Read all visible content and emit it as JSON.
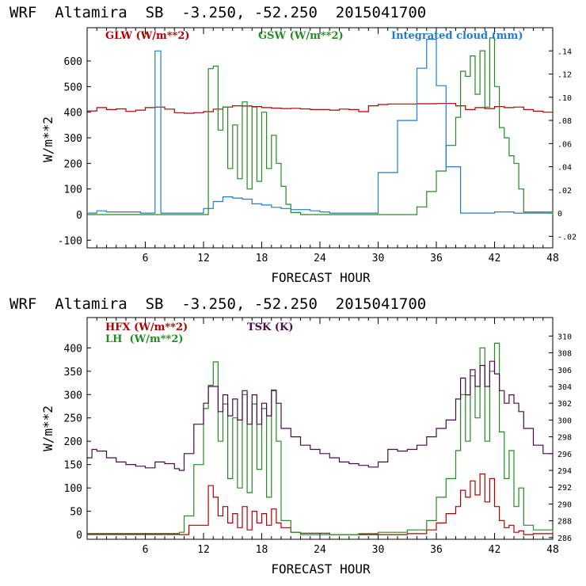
{
  "chart_data": [
    {
      "type": "line",
      "title": "WRF  Altamira  SB  -3.250, -52.250  2015041700",
      "xlabel": "FORECAST HOUR",
      "ylabel": "W/m**2",
      "xlim": [
        0,
        48
      ],
      "ylim": [
        -130,
        730
      ],
      "y2lim": [
        -0.03,
        0.16
      ],
      "x_ticks": [
        6,
        12,
        18,
        24,
        30,
        36,
        42,
        48
      ],
      "y_ticks": [
        -100,
        0,
        100,
        200,
        300,
        400,
        500,
        600
      ],
      "y2_ticks": [
        -0.02,
        0,
        0.02,
        0.04,
        0.06,
        0.08,
        0.1,
        0.12,
        0.14
      ],
      "y2_tick_labels": [
        "-.02",
        "0",
        ".02",
        ".04",
        ".06",
        ".08",
        ".10",
        ".12",
        ".14"
      ],
      "legend": [
        "GLW (W/m**2)",
        "GSW (W/m**2)",
        "Integrated cloud (mm)"
      ],
      "series": [
        {
          "name": "GLW (W/m**2)",
          "axis": "left",
          "color": "#b00000",
          "x": [
            0,
            1,
            2,
            3,
            4,
            5,
            6,
            7,
            8,
            9,
            10,
            11,
            12,
            13,
            14,
            15,
            16,
            17,
            18,
            19,
            20,
            21,
            22,
            23,
            24,
            25,
            26,
            27,
            28,
            29,
            30,
            31,
            32,
            33,
            34,
            35,
            36,
            37,
            38,
            39,
            40,
            41,
            42,
            43,
            44,
            45,
            46,
            47,
            48
          ],
          "y": [
            405,
            418,
            410,
            413,
            403,
            408,
            418,
            420,
            412,
            398,
            396,
            398,
            402,
            412,
            420,
            425,
            424,
            422,
            418,
            416,
            414,
            415,
            413,
            410,
            410,
            408,
            412,
            410,
            402,
            425,
            430,
            432,
            432,
            432,
            433,
            433,
            434,
            434,
            425,
            410,
            418,
            414,
            422,
            418,
            420,
            410,
            404,
            400,
            397
          ]
        },
        {
          "name": "GSW (W/m**2)",
          "axis": "left",
          "color": "#228b22",
          "x": [
            0,
            9.5,
            12.5,
            13,
            13.5,
            14,
            14.5,
            15,
            15.5,
            16,
            16.5,
            17,
            17.5,
            18,
            18.5,
            19,
            19.5,
            20,
            20.5,
            21,
            22,
            33,
            34,
            35,
            36,
            37,
            38,
            38.5,
            39,
            39.5,
            40,
            40.5,
            41,
            41.5,
            42,
            42.5,
            43,
            43.5,
            44,
            44.5,
            45,
            48
          ],
          "y": [
            0,
            0,
            570,
            580,
            330,
            420,
            180,
            350,
            140,
            440,
            100,
            420,
            130,
            400,
            180,
            310,
            200,
            110,
            40,
            8,
            0,
            0,
            30,
            90,
            170,
            270,
            380,
            560,
            540,
            620,
            470,
            640,
            420,
            690,
            500,
            340,
            300,
            230,
            200,
            100,
            10,
            0
          ]
        },
        {
          "name": "Integrated cloud (mm)",
          "axis": "right",
          "color": "#1e7bd0",
          "x": [
            0,
            1,
            2,
            4,
            5.5,
            6.2,
            7,
            7.6,
            8.5,
            10,
            12,
            13,
            14,
            15,
            16,
            17,
            18,
            19,
            20,
            21,
            22,
            23,
            24,
            25,
            28.5,
            30,
            32,
            34,
            35,
            36,
            37,
            38.5,
            40,
            42,
            44,
            46,
            48
          ],
          "y": [
            0,
            0.002,
            0.001,
            0.001,
            0,
            0,
            0.14,
            0,
            0,
            0,
            0.004,
            0.01,
            0.014,
            0.013,
            0.012,
            0.008,
            0.007,
            0.005,
            0.004,
            0.003,
            0.003,
            0.002,
            0.001,
            0,
            0,
            0.035,
            0.08,
            0.125,
            0.15,
            0.11,
            0.04,
            0,
            0,
            0.001,
            0,
            0,
            0
          ]
        }
      ]
    },
    {
      "type": "line",
      "title": "WRF  Altamira  SB  -3.250, -52.250  2015041700",
      "xlabel": "FORECAST HOUR",
      "ylabel": "W/m**2",
      "xlim": [
        0,
        48
      ],
      "ylim": [
        -10,
        465
      ],
      "y2lim": [
        285.8,
        312.2
      ],
      "x_ticks": [
        6,
        12,
        18,
        24,
        30,
        36,
        42,
        48
      ],
      "y_ticks": [
        0,
        50,
        100,
        150,
        200,
        250,
        300,
        350,
        400
      ],
      "y2_ticks": [
        286,
        288,
        290,
        292,
        294,
        296,
        298,
        300,
        302,
        304,
        306,
        308,
        310
      ],
      "y2_tick_labels": [
        "286",
        "288",
        "290",
        "292",
        "294",
        "296",
        "298",
        "300",
        "302",
        "304",
        "306",
        "308",
        "310"
      ],
      "legend": [
        "HFX (W/m**2)",
        "LH  (W/m**2)",
        "TSK (K)"
      ],
      "series": [
        {
          "name": "HFX (W/m**2)",
          "axis": "left",
          "color": "#b00000",
          "x": [
            0,
            9.5,
            10.5,
            12.5,
            13,
            13.5,
            14,
            14.5,
            15,
            15.5,
            16,
            16.5,
            17,
            17.5,
            18,
            18.5,
            19,
            19.5,
            20,
            21,
            22,
            25,
            30,
            33,
            35,
            36,
            37,
            38,
            38.5,
            39,
            39.5,
            40,
            40.5,
            41,
            41.5,
            42,
            42.5,
            43,
            43.5,
            44,
            44.5,
            45,
            46,
            48
          ],
          "y": [
            2,
            0,
            20,
            105,
            80,
            40,
            60,
            25,
            45,
            15,
            60,
            10,
            50,
            25,
            45,
            20,
            55,
            25,
            15,
            5,
            3,
            0,
            0,
            2,
            10,
            25,
            45,
            60,
            95,
            80,
            115,
            85,
            130,
            70,
            120,
            60,
            30,
            15,
            20,
            5,
            8,
            0,
            2,
            0
          ]
        },
        {
          "name": "LH  (W/m**2)",
          "axis": "left",
          "color": "#228b22",
          "x": [
            0,
            8,
            9.5,
            10,
            11,
            12,
            12.5,
            13,
            13.5,
            14,
            14.5,
            15,
            15.5,
            16,
            16.5,
            17,
            17.5,
            18,
            18.5,
            19,
            19.5,
            20,
            21,
            22,
            24,
            26,
            28,
            30,
            33,
            34,
            35,
            36,
            37,
            38,
            38.5,
            39,
            39.5,
            40,
            40.5,
            41,
            41.5,
            42,
            42.5,
            43,
            43.5,
            44,
            44.5,
            45,
            46,
            48
          ],
          "y": [
            0,
            0,
            5,
            40,
            150,
            270,
            320,
            370,
            200,
            280,
            120,
            250,
            100,
            300,
            90,
            280,
            140,
            270,
            80,
            310,
            200,
            30,
            5,
            0,
            0,
            0,
            2,
            5,
            10,
            10,
            30,
            80,
            120,
            180,
            300,
            200,
            340,
            250,
            400,
            200,
            350,
            410,
            220,
            120,
            180,
            60,
            100,
            20,
            10,
            5
          ]
        },
        {
          "name": "TSK (K)",
          "axis": "right",
          "color": "#4a0a4a",
          "x": [
            0,
            0.5,
            1,
            2,
            3,
            4,
            5,
            6,
            7,
            8,
            9,
            9.5,
            10,
            11,
            12,
            12.5,
            13,
            13.5,
            14,
            14.5,
            15,
            15.5,
            16,
            16.5,
            17,
            17.5,
            18,
            18.5,
            19,
            19.5,
            20,
            21,
            22,
            23,
            24,
            25,
            26,
            27,
            28,
            29,
            30,
            31,
            32,
            33,
            34,
            35,
            36,
            37,
            38,
            38.5,
            39,
            39.5,
            40,
            40.5,
            41,
            41.5,
            42,
            42.5,
            43,
            43.5,
            44,
            44.5,
            45,
            46,
            47,
            48
          ],
          "y": [
            295.5,
            296.5,
            296.3,
            295.5,
            295,
            294.7,
            294.5,
            294.3,
            295,
            294.8,
            294.2,
            294,
            296,
            299.5,
            302,
            304,
            304,
            301,
            303,
            300.5,
            302.5,
            300,
            303.5,
            299.5,
            303,
            299.5,
            302,
            300.5,
            303.5,
            302,
            299,
            298,
            297,
            296.5,
            296,
            295.5,
            295,
            294.8,
            294.6,
            294.4,
            295,
            296.5,
            296.3,
            296.5,
            297,
            298,
            299,
            300,
            302.5,
            305,
            303,
            306,
            304,
            306.5,
            304,
            307,
            305.5,
            303.5,
            302,
            303,
            302,
            301,
            299,
            297,
            296,
            295.2
          ]
        }
      ]
    }
  ]
}
